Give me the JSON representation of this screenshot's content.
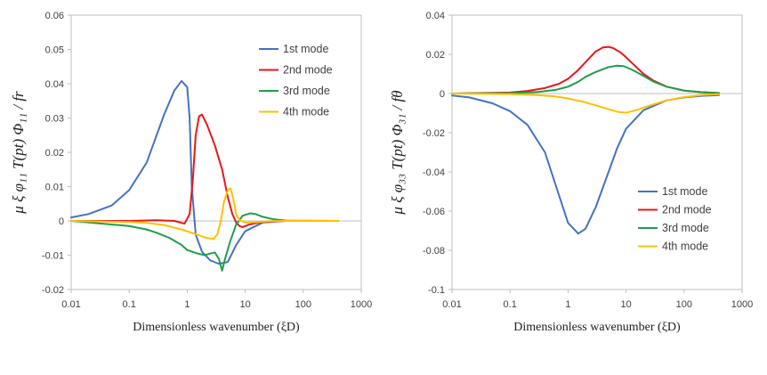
{
  "chart_data": [
    {
      "type": "line",
      "x_scale": "log",
      "xlim": [
        0.01,
        1000
      ],
      "ylim": [
        -0.02,
        0.06
      ],
      "x_ticks": [
        "0.01",
        "0.1",
        "1",
        "10",
        "100",
        "1000"
      ],
      "y_ticks": [
        "-0.02",
        "-0.01",
        "0",
        "0.01",
        "0.02",
        "0.03",
        "0.04",
        "0.05",
        "0.06"
      ],
      "xlabel": "Dimensionless  wavenumber  (ξD)",
      "ylabel": "μ ξ φ₁₁ T(pt) Φ₁₁ / fr",
      "legend_position": "top-right",
      "grid": false,
      "series": [
        {
          "name": "1st mode",
          "color": "#4472C4",
          "x": [
            0.01,
            0.02,
            0.05,
            0.1,
            0.2,
            0.4,
            0.6,
            0.8,
            1.0,
            1.1,
            1.2,
            1.4,
            1.8,
            2.5,
            3.5,
            5,
            7,
            10,
            20,
            50,
            400
          ],
          "y": [
            0.001,
            0.002,
            0.0045,
            0.009,
            0.017,
            0.031,
            0.038,
            0.0408,
            0.039,
            0.03,
            0.01,
            -0.004,
            -0.009,
            -0.0115,
            -0.0125,
            -0.012,
            -0.007,
            -0.003,
            -0.0005,
            0,
            0
          ]
        },
        {
          "name": "2nd mode",
          "color": "#E8161B",
          "x": [
            0.01,
            0.1,
            0.3,
            0.6,
            0.9,
            1.1,
            1.25,
            1.4,
            1.6,
            1.8,
            2.2,
            3,
            4,
            5,
            6,
            7,
            8,
            9,
            12,
            20,
            50,
            400
          ],
          "y": [
            0,
            0,
            0.0002,
            0,
            -0.0008,
            0.002,
            0.012,
            0.025,
            0.0305,
            0.031,
            0.028,
            0.022,
            0.015,
            0.007,
            0.002,
            -0.0005,
            -0.0015,
            -0.0018,
            -0.001,
            -0.0003,
            0,
            0
          ]
        },
        {
          "name": "3rd mode",
          "color": "#1F9E4A",
          "x": [
            0.01,
            0.1,
            0.2,
            0.3,
            0.5,
            0.8,
            1.0,
            1.5,
            2.0,
            2.5,
            3.0,
            3.5,
            4.0,
            4.5,
            5.5,
            7,
            9,
            12,
            15,
            20,
            30,
            50,
            400
          ],
          "y": [
            0,
            -0.0015,
            -0.0025,
            -0.0035,
            -0.005,
            -0.007,
            -0.0085,
            -0.0095,
            -0.01,
            -0.0095,
            -0.0092,
            -0.011,
            -0.0145,
            -0.011,
            -0.006,
            -0.001,
            0.0015,
            0.0022,
            0.002,
            0.0012,
            0.0005,
            0.0001,
            0
          ]
        },
        {
          "name": "4th mode",
          "color": "#FFC000",
          "x": [
            0.01,
            0.1,
            0.2,
            0.4,
            0.8,
            1.2,
            2.0,
            2.8,
            3.3,
            3.8,
            4.3,
            5.0,
            5.6,
            6.3,
            7,
            8,
            10,
            15,
            25,
            50,
            400
          ],
          "y": [
            0,
            -0.0003,
            -0.0006,
            -0.0012,
            -0.0025,
            -0.0035,
            -0.0048,
            -0.0053,
            -0.004,
            0.0,
            0.0055,
            0.009,
            0.0095,
            0.006,
            0.002,
            0.0002,
            -0.0005,
            -0.0004,
            -0.0001,
            0,
            0
          ]
        }
      ]
    },
    {
      "type": "line",
      "x_scale": "log",
      "xlim": [
        0.01,
        1000
      ],
      "ylim": [
        -0.1,
        0.04
      ],
      "x_ticks": [
        "0.01",
        "0.1",
        "1",
        "10",
        "100",
        "1000"
      ],
      "y_ticks": [
        "-0.1",
        "-0.08",
        "-0.06",
        "-0.04",
        "-0.02",
        "0",
        "0.02",
        "0.04"
      ],
      "xlabel": "Dimensionless  wavenumber  (ξD)",
      "ylabel": "μ ξ φ₃₃ T(pt) Φ₃₁ / fθ",
      "legend_position": "bottom-right",
      "grid": false,
      "series": [
        {
          "name": "1st mode",
          "color": "#4472C4",
          "x": [
            0.01,
            0.02,
            0.05,
            0.1,
            0.2,
            0.4,
            0.7,
            1.0,
            1.5,
            2.0,
            3.0,
            5,
            7,
            10,
            20,
            50,
            100,
            200,
            400
          ],
          "y": [
            -0.001,
            -0.002,
            -0.005,
            -0.009,
            -0.016,
            -0.03,
            -0.052,
            -0.066,
            -0.0715,
            -0.069,
            -0.058,
            -0.04,
            -0.028,
            -0.018,
            -0.0085,
            -0.0035,
            -0.002,
            -0.0012,
            -0.0008
          ]
        },
        {
          "name": "2nd mode",
          "color": "#E8161B",
          "x": [
            0.01,
            0.1,
            0.2,
            0.4,
            0.7,
            1.0,
            1.5,
            2,
            3,
            4,
            5,
            6,
            8,
            10,
            15,
            20,
            30,
            50,
            100,
            200,
            400
          ],
          "y": [
            0,
            0.0005,
            0.0013,
            0.0028,
            0.005,
            0.0075,
            0.012,
            0.016,
            0.0215,
            0.0235,
            0.0238,
            0.0232,
            0.021,
            0.0185,
            0.0135,
            0.01,
            0.0065,
            0.0035,
            0.0015,
            0.0007,
            0.0003
          ]
        },
        {
          "name": "3rd mode",
          "color": "#1F9E4A",
          "x": [
            0.01,
            0.1,
            0.3,
            0.6,
            1.0,
            1.5,
            2,
            3,
            5,
            7,
            9,
            12,
            15,
            20,
            30,
            50,
            100,
            200,
            400
          ],
          "y": [
            0,
            0.0002,
            0.0008,
            0.0018,
            0.0035,
            0.006,
            0.0085,
            0.011,
            0.0135,
            0.0142,
            0.014,
            0.0125,
            0.011,
            0.009,
            0.006,
            0.0035,
            0.0015,
            0.0007,
            0.0002
          ]
        },
        {
          "name": "4th mode",
          "color": "#FFC000",
          "x": [
            0.01,
            0.1,
            0.3,
            0.6,
            1.0,
            2,
            3,
            5,
            7,
            10,
            15,
            20,
            30,
            50,
            100,
            200,
            400
          ],
          "y": [
            0,
            -0.0003,
            -0.0008,
            -0.0015,
            -0.0025,
            -0.0045,
            -0.006,
            -0.008,
            -0.0093,
            -0.0098,
            -0.0085,
            -0.0072,
            -0.0055,
            -0.0035,
            -0.0018,
            -0.0008,
            -0.0003
          ]
        }
      ]
    }
  ]
}
